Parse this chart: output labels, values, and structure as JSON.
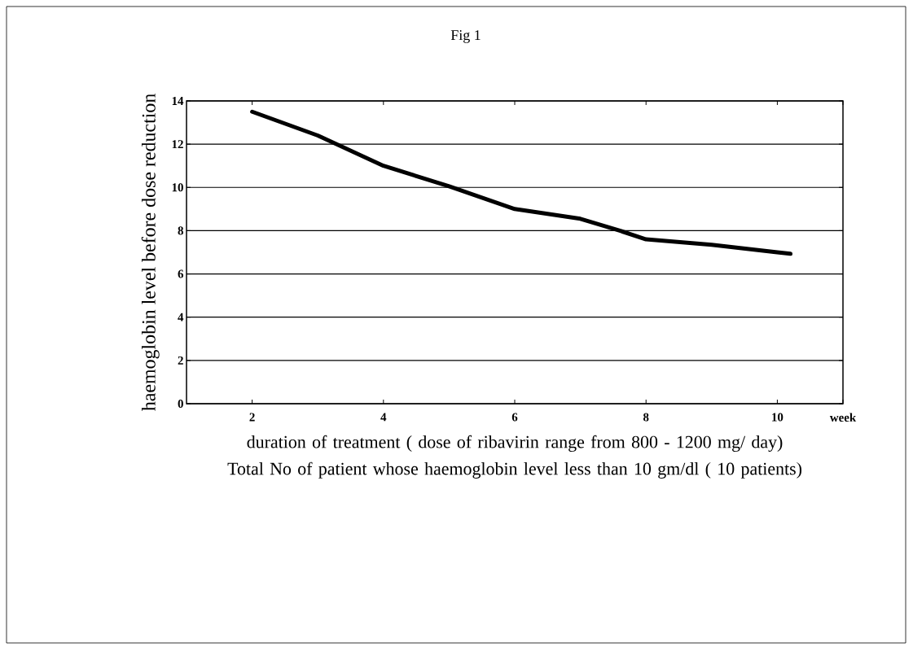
{
  "chart_data": {
    "type": "line",
    "title": "Fig 1",
    "xlabel": "duration of treatment  ( dose of ribavirin range from 800 - 1200 mg/ day)          Total No of patient whose haemoglobin level less than 10 gm/dl              ( 10 patients)",
    "ylabel": "haemoglobin level before dose reduction",
    "x": [
      2,
      3,
      4,
      5,
      6,
      7,
      7.6,
      8,
      9,
      10,
      10.2
    ],
    "values": [
      13.5,
      12.4,
      11.0,
      10.05,
      9.0,
      8.55,
      8.0,
      7.6,
      7.35,
      7.0,
      6.93
    ],
    "color": "#000000",
    "xlim": [
      1,
      11
    ],
    "xticks": [
      2,
      4,
      6,
      8,
      10,
      {
        "value": 11,
        "label": "week"
      }
    ],
    "ylim": [
      0,
      14
    ],
    "yticks": [
      0,
      2,
      4,
      6,
      8,
      10,
      12,
      14
    ],
    "grid": "y"
  }
}
